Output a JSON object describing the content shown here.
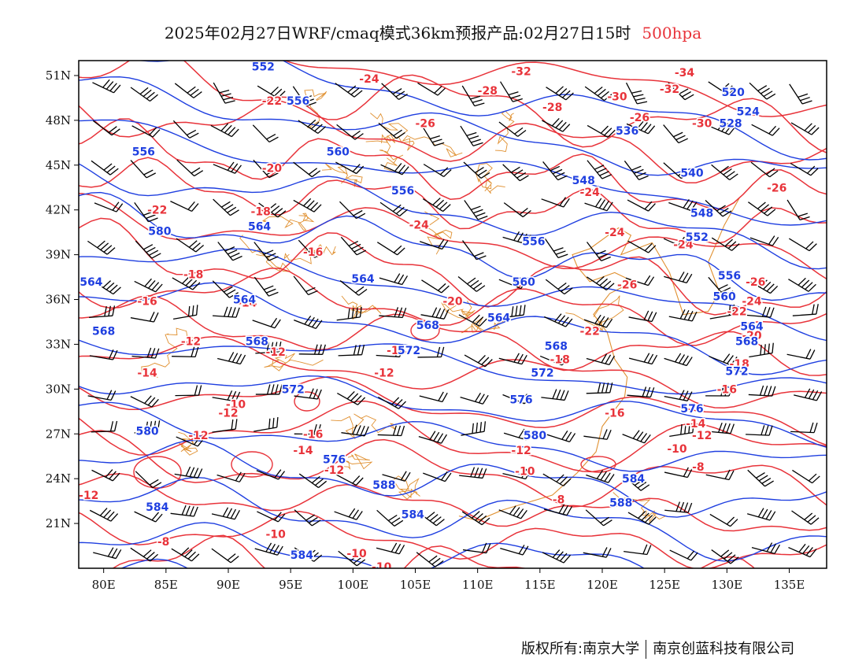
{
  "header": {
    "title": "2025年02月27日WRF/cmaq模式36km预报产品:02月27日15时",
    "level": "500hpa"
  },
  "map": {
    "lon_ticks": [
      "80E",
      "85E",
      "90E",
      "95E",
      "100E",
      "105E",
      "110E",
      "115E",
      "120E",
      "125E",
      "130E",
      "135E"
    ],
    "lat_ticks": [
      "51N",
      "48N",
      "45N",
      "42N",
      "39N",
      "36N",
      "33N",
      "30N",
      "27N",
      "24N",
      "21N"
    ],
    "lon_range": [
      78,
      138
    ],
    "lat_range": [
      18,
      52
    ],
    "colors": {
      "height": "#1f3fe0",
      "temperature": "#e8333a",
      "boundary": "#e09030",
      "wind": "#000000"
    }
  },
  "height_labels": [
    {
      "text": "552",
      "lon": 92.8,
      "lat": 51.6
    },
    {
      "text": "556",
      "lon": 95.6,
      "lat": 49.3
    },
    {
      "text": "556",
      "lon": 83.2,
      "lat": 45.9
    },
    {
      "text": "560",
      "lon": 98.8,
      "lat": 45.9
    },
    {
      "text": "556",
      "lon": 104.0,
      "lat": 43.3
    },
    {
      "text": "548",
      "lon": 118.5,
      "lat": 44.0
    },
    {
      "text": "540",
      "lon": 127.2,
      "lat": 44.5
    },
    {
      "text": "548",
      "lon": 128.0,
      "lat": 41.8
    },
    {
      "text": "552",
      "lon": 127.6,
      "lat": 40.2
    },
    {
      "text": "564",
      "lon": 92.5,
      "lat": 40.9
    },
    {
      "text": "556",
      "lon": 114.5,
      "lat": 39.9
    },
    {
      "text": "564",
      "lon": 100.8,
      "lat": 37.4
    },
    {
      "text": "560",
      "lon": 113.7,
      "lat": 37.2
    },
    {
      "text": "556",
      "lon": 130.2,
      "lat": 37.6
    },
    {
      "text": "560",
      "lon": 129.8,
      "lat": 36.2
    },
    {
      "text": "564",
      "lon": 79.0,
      "lat": 37.2
    },
    {
      "text": "568",
      "lon": 80.0,
      "lat": 33.9
    },
    {
      "text": "568",
      "lon": 92.3,
      "lat": 33.2
    },
    {
      "text": "568",
      "lon": 106.0,
      "lat": 34.3
    },
    {
      "text": "564",
      "lon": 111.7,
      "lat": 34.8
    },
    {
      "text": "568",
      "lon": 116.3,
      "lat": 32.9
    },
    {
      "text": "572",
      "lon": 104.5,
      "lat": 32.6
    },
    {
      "text": "572",
      "lon": 115.2,
      "lat": 31.1
    },
    {
      "text": "572",
      "lon": 95.2,
      "lat": 30.0
    },
    {
      "text": "576",
      "lon": 113.5,
      "lat": 29.3
    },
    {
      "text": "576",
      "lon": 127.2,
      "lat": 28.7
    },
    {
      "text": "580",
      "lon": 83.5,
      "lat": 27.2
    },
    {
      "text": "580",
      "lon": 114.6,
      "lat": 26.9
    },
    {
      "text": "576",
      "lon": 98.5,
      "lat": 25.3
    },
    {
      "text": "588",
      "lon": 102.5,
      "lat": 23.6
    },
    {
      "text": "584",
      "lon": 122.5,
      "lat": 24.0
    },
    {
      "text": "588",
      "lon": 121.5,
      "lat": 22.4
    },
    {
      "text": "584",
      "lon": 84.3,
      "lat": 22.1
    },
    {
      "text": "584",
      "lon": 104.8,
      "lat": 21.6
    },
    {
      "text": "584",
      "lon": 95.9,
      "lat": 18.9
    },
    {
      "text": "520",
      "lon": 130.5,
      "lat": 49.9
    },
    {
      "text": "524",
      "lon": 131.7,
      "lat": 48.6
    },
    {
      "text": "528",
      "lon": 130.3,
      "lat": 47.8
    },
    {
      "text": "536",
      "lon": 122.0,
      "lat": 47.3
    },
    {
      "text": "564",
      "lon": 132.0,
      "lat": 34.2
    },
    {
      "text": "568",
      "lon": 131.6,
      "lat": 33.2
    },
    {
      "text": "572",
      "lon": 130.8,
      "lat": 31.2
    },
    {
      "text": "564",
      "lon": 91.3,
      "lat": 36.0
    },
    {
      "text": "580",
      "lon": 84.5,
      "lat": 40.6
    }
  ],
  "temp_labels": [
    {
      "text": "-24",
      "lon": 101.3,
      "lat": 50.8
    },
    {
      "text": "-32",
      "lon": 113.5,
      "lat": 51.3
    },
    {
      "text": "-34",
      "lon": 126.6,
      "lat": 51.2
    },
    {
      "text": "-32",
      "lon": 125.4,
      "lat": 50.1
    },
    {
      "text": "-30",
      "lon": 121.2,
      "lat": 49.6
    },
    {
      "text": "-28",
      "lon": 110.8,
      "lat": 50.0
    },
    {
      "text": "-22",
      "lon": 93.5,
      "lat": 49.3
    },
    {
      "text": "-26",
      "lon": 105.8,
      "lat": 47.8
    },
    {
      "text": "-28",
      "lon": 116.0,
      "lat": 48.9
    },
    {
      "text": "-26",
      "lon": 123.0,
      "lat": 48.2
    },
    {
      "text": "-30",
      "lon": 128.0,
      "lat": 47.8
    },
    {
      "text": "-20",
      "lon": 93.5,
      "lat": 44.8
    },
    {
      "text": "-24",
      "lon": 119.0,
      "lat": 43.2
    },
    {
      "text": "-26",
      "lon": 134.0,
      "lat": 43.5
    },
    {
      "text": "-22",
      "lon": 84.3,
      "lat": 42.0
    },
    {
      "text": "-18",
      "lon": 92.6,
      "lat": 41.9
    },
    {
      "text": "-24",
      "lon": 105.3,
      "lat": 41.0
    },
    {
      "text": "-24",
      "lon": 121.0,
      "lat": 40.5
    },
    {
      "text": "-24",
      "lon": 126.5,
      "lat": 39.7
    },
    {
      "text": "-16",
      "lon": 96.8,
      "lat": 39.2
    },
    {
      "text": "-18",
      "lon": 87.2,
      "lat": 37.7
    },
    {
      "text": "-16",
      "lon": 83.5,
      "lat": 35.9
    },
    {
      "text": "-14",
      "lon": 91.5,
      "lat": 35.8
    },
    {
      "text": "-20",
      "lon": 108.0,
      "lat": 35.9
    },
    {
      "text": "-24",
      "lon": 132.0,
      "lat": 35.9
    },
    {
      "text": "-22",
      "lon": 130.8,
      "lat": 35.2
    },
    {
      "text": "-22",
      "lon": 119.0,
      "lat": 33.9
    },
    {
      "text": "-20",
      "lon": 132.0,
      "lat": 33.6
    },
    {
      "text": "-26",
      "lon": 132.3,
      "lat": 37.2
    },
    {
      "text": "-26",
      "lon": 122.0,
      "lat": 37.0
    },
    {
      "text": "-12",
      "lon": 87.0,
      "lat": 33.2
    },
    {
      "text": "-12",
      "lon": 93.8,
      "lat": 32.5
    },
    {
      "text": "-14",
      "lon": 103.5,
      "lat": 32.6
    },
    {
      "text": "-12",
      "lon": 102.5,
      "lat": 31.1
    },
    {
      "text": "-18",
      "lon": 116.6,
      "lat": 32.0
    },
    {
      "text": "-18",
      "lon": 131.0,
      "lat": 31.7
    },
    {
      "text": "-16",
      "lon": 130.0,
      "lat": 30.0
    },
    {
      "text": "-14",
      "lon": 83.5,
      "lat": 31.1
    },
    {
      "text": "-10",
      "lon": 90.6,
      "lat": 29.0
    },
    {
      "text": "-12",
      "lon": 90.0,
      "lat": 28.4
    },
    {
      "text": "-12",
      "lon": 87.6,
      "lat": 26.9
    },
    {
      "text": "-16",
      "lon": 96.8,
      "lat": 27.0
    },
    {
      "text": "-16",
      "lon": 121.0,
      "lat": 28.4
    },
    {
      "text": "-14",
      "lon": 127.5,
      "lat": 27.7
    },
    {
      "text": "-12",
      "lon": 128.0,
      "lat": 26.9
    },
    {
      "text": "-10",
      "lon": 126.0,
      "lat": 26.0
    },
    {
      "text": "-14",
      "lon": 96.0,
      "lat": 25.9
    },
    {
      "text": "-12",
      "lon": 98.5,
      "lat": 24.6
    },
    {
      "text": "-12",
      "lon": 113.5,
      "lat": 25.9
    },
    {
      "text": "-10",
      "lon": 113.8,
      "lat": 24.5
    },
    {
      "text": "-8",
      "lon": 127.7,
      "lat": 24.8
    },
    {
      "text": "-8",
      "lon": 116.5,
      "lat": 22.6
    },
    {
      "text": "-12",
      "lon": 78.8,
      "lat": 22.9
    },
    {
      "text": "-10",
      "lon": 93.8,
      "lat": 20.3
    },
    {
      "text": "-8",
      "lon": 84.8,
      "lat": 19.8
    },
    {
      "text": "-10",
      "lon": 100.3,
      "lat": 19.0
    },
    {
      "text": "-10",
      "lon": 102.3,
      "lat": 18.1
    }
  ],
  "wind_field": {
    "lon_step": 3.3,
    "lat_step": 2.6,
    "lon_start": 79,
    "lat_start": 19.2
  },
  "footer": {
    "copyright_left": "版权所有:南京大学",
    "copyright_right": "南京创蓝科技有限公司"
  }
}
